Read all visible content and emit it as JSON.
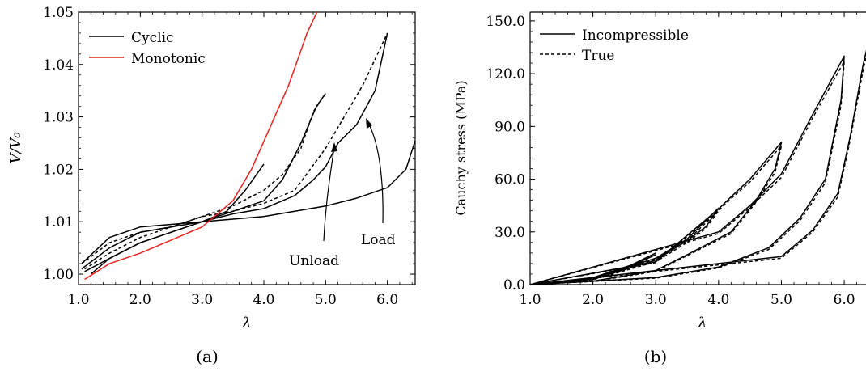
{
  "chart_data": [
    {
      "type": "line",
      "panel_label": "(a)",
      "xlabel": "λ",
      "ylabel": "V/V₀",
      "xlim": [
        1.0,
        6.45
      ],
      "ylim": [
        0.998,
        1.05
      ],
      "xticks": [
        "1.0",
        "2.0",
        "3.0",
        "4.0",
        "5.0",
        "6.0"
      ],
      "yticks": [
        "1.00",
        "1.01",
        "1.02",
        "1.03",
        "1.04",
        "1.05"
      ],
      "legend": {
        "position": "top-left",
        "entries": [
          "Cyclic",
          "Monotonic"
        ]
      },
      "colors": {
        "cyclic": "#000000",
        "monotonic": "#e8231d"
      },
      "annotations": [
        {
          "text": "Unload",
          "x": 5.15,
          "y": 1.026
        },
        {
          "text": "Load",
          "x": 5.7,
          "y": 1.029
        }
      ],
      "series": [
        {
          "name": "Cyclic",
          "group": "cyclic",
          "style": "solid",
          "points": [
            [
              1.05,
              1.002
            ],
            [
              1.5,
              1.007
            ],
            [
              2.0,
              1.009
            ],
            [
              2.5,
              1.0095
            ],
            [
              3.0,
              1.01
            ],
            [
              3.4,
              1.012
            ],
            [
              3.7,
              1.016
            ],
            [
              4.0,
              1.021
            ]
          ]
        },
        {
          "group": "cyclic",
          "style": "solid",
          "points": [
            [
              1.05,
              1.001
            ],
            [
              1.5,
              1.005
            ],
            [
              2.0,
              1.008
            ],
            [
              2.5,
              1.009
            ],
            [
              3.0,
              1.01
            ],
            [
              3.5,
              1.012
            ],
            [
              4.0,
              1.014
            ],
            [
              4.3,
              1.018
            ],
            [
              4.6,
              1.025
            ],
            [
              4.85,
              1.032
            ],
            [
              5.0,
              1.0345
            ]
          ]
        },
        {
          "group": "cyclic",
          "style": "dashed",
          "points": [
            [
              1.05,
              1.002
            ],
            [
              1.5,
              1.006
            ],
            [
              2.0,
              1.008
            ],
            [
              2.5,
              1.009
            ],
            [
              3.0,
              1.011
            ],
            [
              3.5,
              1.013
            ],
            [
              4.0,
              1.016
            ],
            [
              4.3,
              1.019
            ],
            [
              4.6,
              1.024
            ],
            [
              4.8,
              1.031
            ],
            [
              5.0,
              1.0345
            ]
          ]
        },
        {
          "group": "cyclic",
          "style": "solid",
          "points": [
            [
              1.1,
              1.0005
            ],
            [
              1.5,
              1.003
            ],
            [
              2.0,
              1.006
            ],
            [
              2.5,
              1.008
            ],
            [
              3.0,
              1.01
            ],
            [
              3.5,
              1.0115
            ],
            [
              4.0,
              1.0125
            ],
            [
              4.5,
              1.015
            ],
            [
              4.8,
              1.018
            ],
            [
              5.0,
              1.0205
            ],
            [
              5.2,
              1.025
            ],
            [
              5.5,
              1.0285
            ],
            [
              5.8,
              1.035
            ],
            [
              6.0,
              1.046
            ]
          ]
        },
        {
          "group": "cyclic",
          "style": "dashed",
          "points": [
            [
              1.1,
              1.001
            ],
            [
              1.5,
              1.004
            ],
            [
              2.0,
              1.007
            ],
            [
              2.5,
              1.009
            ],
            [
              3.0,
              1.011
            ],
            [
              3.5,
              1.012
            ],
            [
              4.0,
              1.0135
            ],
            [
              4.5,
              1.016
            ],
            [
              5.0,
              1.024
            ],
            [
              5.3,
              1.03
            ],
            [
              5.6,
              1.036
            ],
            [
              5.8,
              1.041
            ],
            [
              6.0,
              1.046
            ]
          ]
        },
        {
          "group": "cyclic",
          "style": "solid",
          "points": [
            [
              1.2,
              1.0
            ],
            [
              1.5,
              1.003
            ],
            [
              2.0,
              1.006
            ],
            [
              2.5,
              1.008
            ],
            [
              3.0,
              1.01
            ],
            [
              3.5,
              1.0105
            ],
            [
              4.0,
              1.011
            ],
            [
              4.5,
              1.012
            ],
            [
              5.0,
              1.013
            ],
            [
              5.5,
              1.0145
            ],
            [
              6.0,
              1.0165
            ],
            [
              6.3,
              1.02
            ],
            [
              6.45,
              1.0255
            ]
          ]
        },
        {
          "name": "Monotonic",
          "group": "monotonic",
          "style": "solid",
          "points": [
            [
              1.1,
              0.999
            ],
            [
              1.5,
              1.002
            ],
            [
              2.0,
              1.004
            ],
            [
              2.5,
              1.0065
            ],
            [
              3.0,
              1.009
            ],
            [
              3.5,
              1.014
            ],
            [
              3.8,
              1.02
            ],
            [
              4.1,
              1.028
            ],
            [
              4.4,
              1.036
            ],
            [
              4.7,
              1.046
            ],
            [
              4.9,
              1.051
            ]
          ]
        }
      ]
    },
    {
      "type": "line",
      "panel_label": "(b)",
      "xlabel": "λ",
      "ylabel": "Cauchy stress (MPa)",
      "xlim": [
        1.0,
        6.45
      ],
      "ylim": [
        0,
        155
      ],
      "xticks": [
        "1.0",
        "2.0",
        "3.0",
        "4.0",
        "5.0",
        "6.0"
      ],
      "yticks": [
        "0.0",
        "30.0",
        "60.0",
        "90.0",
        "120.0",
        "150.0"
      ],
      "legend": {
        "position": "top-left",
        "entries": [
          "Incompressible",
          "True"
        ]
      },
      "series": [
        {
          "name": "Incompressible",
          "style": "solid",
          "points": [
            [
              1.0,
              0
            ],
            [
              1.5,
              1.5
            ],
            [
              2.0,
              4
            ],
            [
              2.5,
              9
            ],
            [
              3.0,
              18
            ],
            [
              2.6,
              11
            ],
            [
              2.0,
              4
            ],
            [
              1.5,
              1.5
            ],
            [
              1.0,
              0
            ],
            [
              2.0,
              4
            ],
            [
              3.0,
              15
            ],
            [
              3.5,
              26
            ],
            [
              4.0,
              43.5
            ],
            [
              3.8,
              33
            ],
            [
              3.5,
              25
            ],
            [
              3.0,
              14
            ],
            [
              2.0,
              3
            ],
            [
              1.0,
              0
            ],
            [
              3.0,
              13
            ],
            [
              4.0,
              43
            ],
            [
              4.2,
              50
            ],
            [
              4.5,
              60
            ],
            [
              5.0,
              81
            ],
            [
              4.9,
              66
            ],
            [
              4.6,
              48
            ],
            [
              4.2,
              30
            ],
            [
              3.5,
              17
            ],
            [
              3.0,
              8
            ],
            [
              2.0,
              2
            ],
            [
              1.0,
              0
            ],
            [
              4.0,
              30
            ],
            [
              4.5,
              45
            ],
            [
              5.0,
              63
            ],
            [
              5.5,
              97
            ],
            [
              6.0,
              130
            ],
            [
              5.95,
              105
            ],
            [
              5.7,
              60
            ],
            [
              5.3,
              38
            ],
            [
              4.8,
              21
            ],
            [
              4.0,
              10
            ],
            [
              3.0,
              4
            ],
            [
              1.0,
              0
            ],
            [
              5.0,
              16
            ],
            [
              5.5,
              31
            ],
            [
              5.9,
              52
            ],
            [
              6.1,
              85
            ],
            [
              6.3,
              125
            ],
            [
              6.45,
              148
            ]
          ]
        },
        {
          "name": "True",
          "style": "dashed",
          "points": [
            [
              1.0,
              0
            ],
            [
              1.5,
              1.3
            ],
            [
              2.0,
              3.7
            ],
            [
              2.5,
              8.5
            ],
            [
              3.0,
              17
            ],
            [
              2.6,
              10.5
            ],
            [
              2.0,
              3.7
            ],
            [
              1.5,
              1.3
            ],
            [
              1.0,
              0
            ],
            [
              2.0,
              3.8
            ],
            [
              3.0,
              14.5
            ],
            [
              3.5,
              25
            ],
            [
              4.0,
              42
            ],
            [
              3.8,
              32
            ],
            [
              3.5,
              24
            ],
            [
              3.0,
              13
            ],
            [
              2.0,
              2.8
            ],
            [
              1.0,
              0
            ],
            [
              3.0,
              12.5
            ],
            [
              4.0,
              42
            ],
            [
              4.2,
              49
            ],
            [
              4.5,
              58.5
            ],
            [
              5.0,
              79
            ],
            [
              4.9,
              64
            ],
            [
              4.6,
              47
            ],
            [
              4.2,
              29
            ],
            [
              3.5,
              16.5
            ],
            [
              3.0,
              7.5
            ],
            [
              2.0,
              1.8
            ],
            [
              1.0,
              0
            ],
            [
              4.0,
              29
            ],
            [
              4.5,
              44
            ],
            [
              5.0,
              61
            ],
            [
              5.5,
              95
            ],
            [
              6.0,
              127
            ],
            [
              5.95,
              102
            ],
            [
              5.7,
              58
            ],
            [
              5.3,
              36.5
            ],
            [
              4.8,
              20
            ],
            [
              4.0,
              9.5
            ],
            [
              3.0,
              3.7
            ],
            [
              1.0,
              0
            ],
            [
              5.0,
              15
            ],
            [
              5.5,
              30
            ],
            [
              5.9,
              50
            ],
            [
              6.1,
              83
            ],
            [
              6.3,
              122
            ],
            [
              6.45,
              145
            ]
          ]
        }
      ]
    }
  ]
}
